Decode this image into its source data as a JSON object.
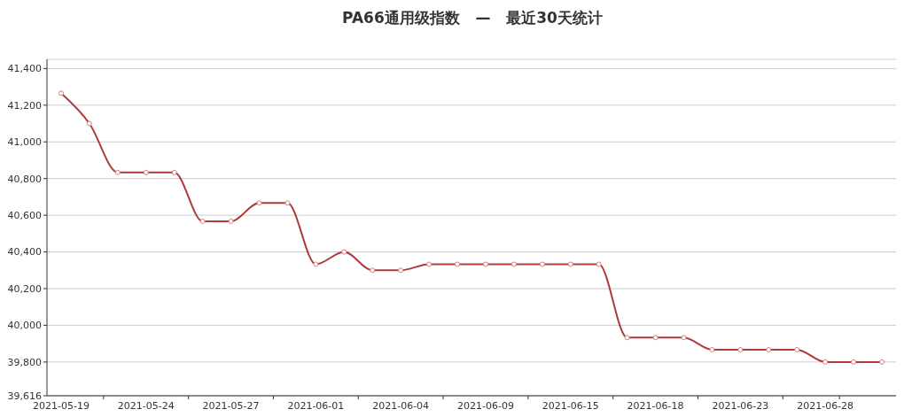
{
  "chart_data": {
    "type": "line",
    "title": "PA66通用级指数   —   最近30天统计",
    "categories": [
      "2021-05-19",
      null,
      null,
      "2021-05-24",
      null,
      null,
      "2021-05-27",
      null,
      null,
      "2021-06-01",
      null,
      null,
      "2021-06-04",
      null,
      null,
      "2021-06-09",
      null,
      null,
      "2021-06-15",
      null,
      null,
      "2021-06-18",
      null,
      null,
      "2021-06-23",
      null,
      null,
      "2021-06-28",
      null,
      null
    ],
    "series": [
      {
        "color": "#b03a3a",
        "values": [
          41265,
          41100,
          40833,
          40833,
          40833,
          40567,
          40567,
          40667,
          40667,
          40333,
          40400,
          40300,
          40300,
          40333,
          40333,
          40333,
          40333,
          40333,
          40333,
          40333,
          39933,
          39933,
          39933,
          39867,
          39867,
          39867,
          39867,
          39800,
          39800,
          39800
        ]
      }
    ],
    "ylim": [
      39616,
      41450
    ],
    "yticks": [
      {
        "value": 39616,
        "label": "39,616"
      },
      {
        "value": 39800,
        "label": "39,800"
      },
      {
        "value": 40000,
        "label": "40,000"
      },
      {
        "value": 40200,
        "label": "40,200"
      },
      {
        "value": 40400,
        "label": "40,400"
      },
      {
        "value": 40600,
        "label": "40,600"
      },
      {
        "value": 40800,
        "label": "40,800"
      },
      {
        "value": 41000,
        "label": "41,000"
      },
      {
        "value": 41200,
        "label": "41,200"
      },
      {
        "value": 41400,
        "label": "41,400"
      }
    ],
    "grid": "y",
    "marker": "circle",
    "line_style": "solid"
  }
}
